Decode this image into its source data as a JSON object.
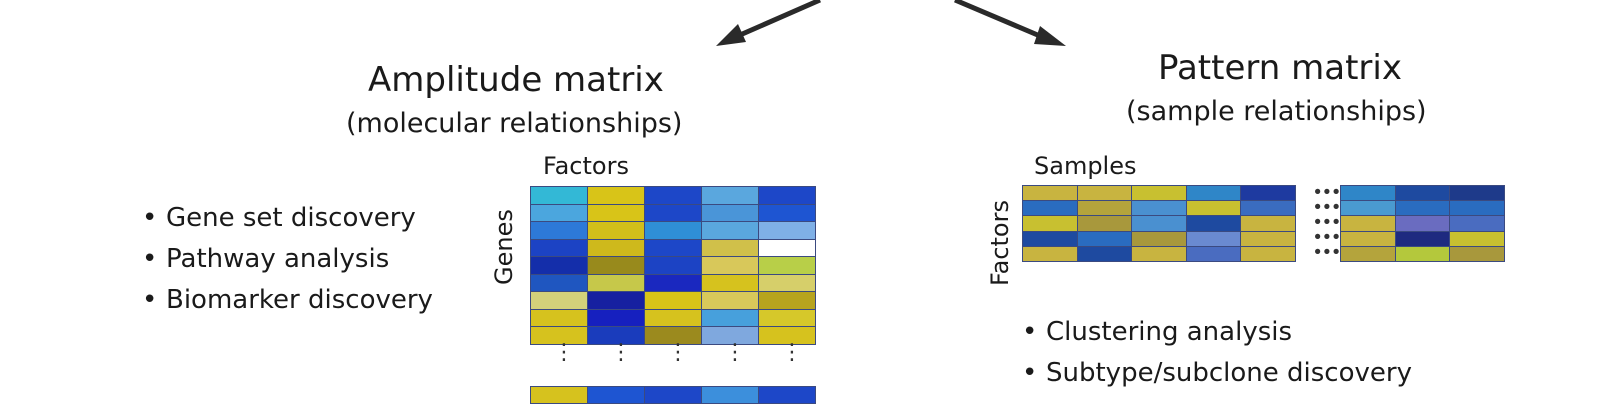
{
  "amplitude": {
    "title": "Amplitude matrix",
    "subtitle": "(molecular relationships)",
    "x_label": "Factors",
    "y_label": "Genes",
    "bullets": [
      "Gene set discovery",
      "Pathway analysis",
      "Biomarker discovery"
    ],
    "heatmap": [
      [
        "#33b8d6",
        "#d8c418",
        "#1d47c8",
        "#5aa7de",
        "#1d47c8"
      ],
      [
        "#4ba6de",
        "#d8c418",
        "#1d47c8",
        "#4a95d8",
        "#1e55d2"
      ],
      [
        "#2d79d8",
        "#d2bf1a",
        "#2f8fd6",
        "#5aa7de",
        "#7fb0e6"
      ],
      [
        "#1c43c4",
        "#ceb91c",
        "#1d47c8",
        "#d0c04a",
        "#ffffff"
      ],
      [
        "#142eaa",
        "#988a1c",
        "#1c43c4",
        "#d8c85a",
        "#b8cf48"
      ],
      [
        "#1f56c0",
        "#c6c84a",
        "#1a28bf",
        "#d6c21e",
        "#d6cf6a"
      ],
      [
        "#d3d17a",
        "#1620a0",
        "#d8c418",
        "#d8c85a",
        "#b7a41e"
      ],
      [
        "#d6c21e",
        "#1620bf",
        "#d6c21e",
        "#47a0dc",
        "#d6c82a"
      ],
      [
        "#d6c21e",
        "#1a3cbc",
        "#9b8a1e",
        "#7fa8de",
        "#d6c21e"
      ]
    ],
    "heatmap_bottom": [
      "#d6c21e",
      "#1e55d2",
      "#1d47c8",
      "#3c8fdc",
      "#1d47c8"
    ]
  },
  "pattern": {
    "title": "Pattern matrix",
    "subtitle": "(sample relationships)",
    "x_label": "Samples",
    "y_label": "Factors",
    "bullets": [
      "Clustering analysis",
      "Subtype/subclone discovery"
    ],
    "heatmap_left": [
      [
        "#c8b440",
        "#c8b440",
        "#c8c030",
        "#2f86c8",
        "#1e3aa0"
      ],
      [
        "#2a6cc0",
        "#b4a43c",
        "#4a90d0",
        "#c8c030",
        "#3a6cc0"
      ],
      [
        "#c8c030",
        "#a8983c",
        "#4a90d0",
        "#1e4aa0",
        "#c8b440"
      ],
      [
        "#1e4aa0",
        "#2a6cc0",
        "#a8983c",
        "#6a8ad0",
        "#c8b440"
      ],
      [
        "#c8b440",
        "#1e4aa0",
        "#c8b440",
        "#4a6cc0",
        "#c8b440"
      ]
    ],
    "heatmap_right": [
      [
        "#2f86c8",
        "#1e4aa0",
        "#1e3a8a"
      ],
      [
        "#4a9ad0",
        "#2a6cc0",
        "#2a6cc0"
      ],
      [
        "#c8b440",
        "#6a6cc0",
        "#4a6cc0"
      ],
      [
        "#c8b440",
        "#1e2a80",
        "#c8c030"
      ],
      [
        "#b4a43c",
        "#b4c83c",
        "#a8983c"
      ]
    ]
  }
}
